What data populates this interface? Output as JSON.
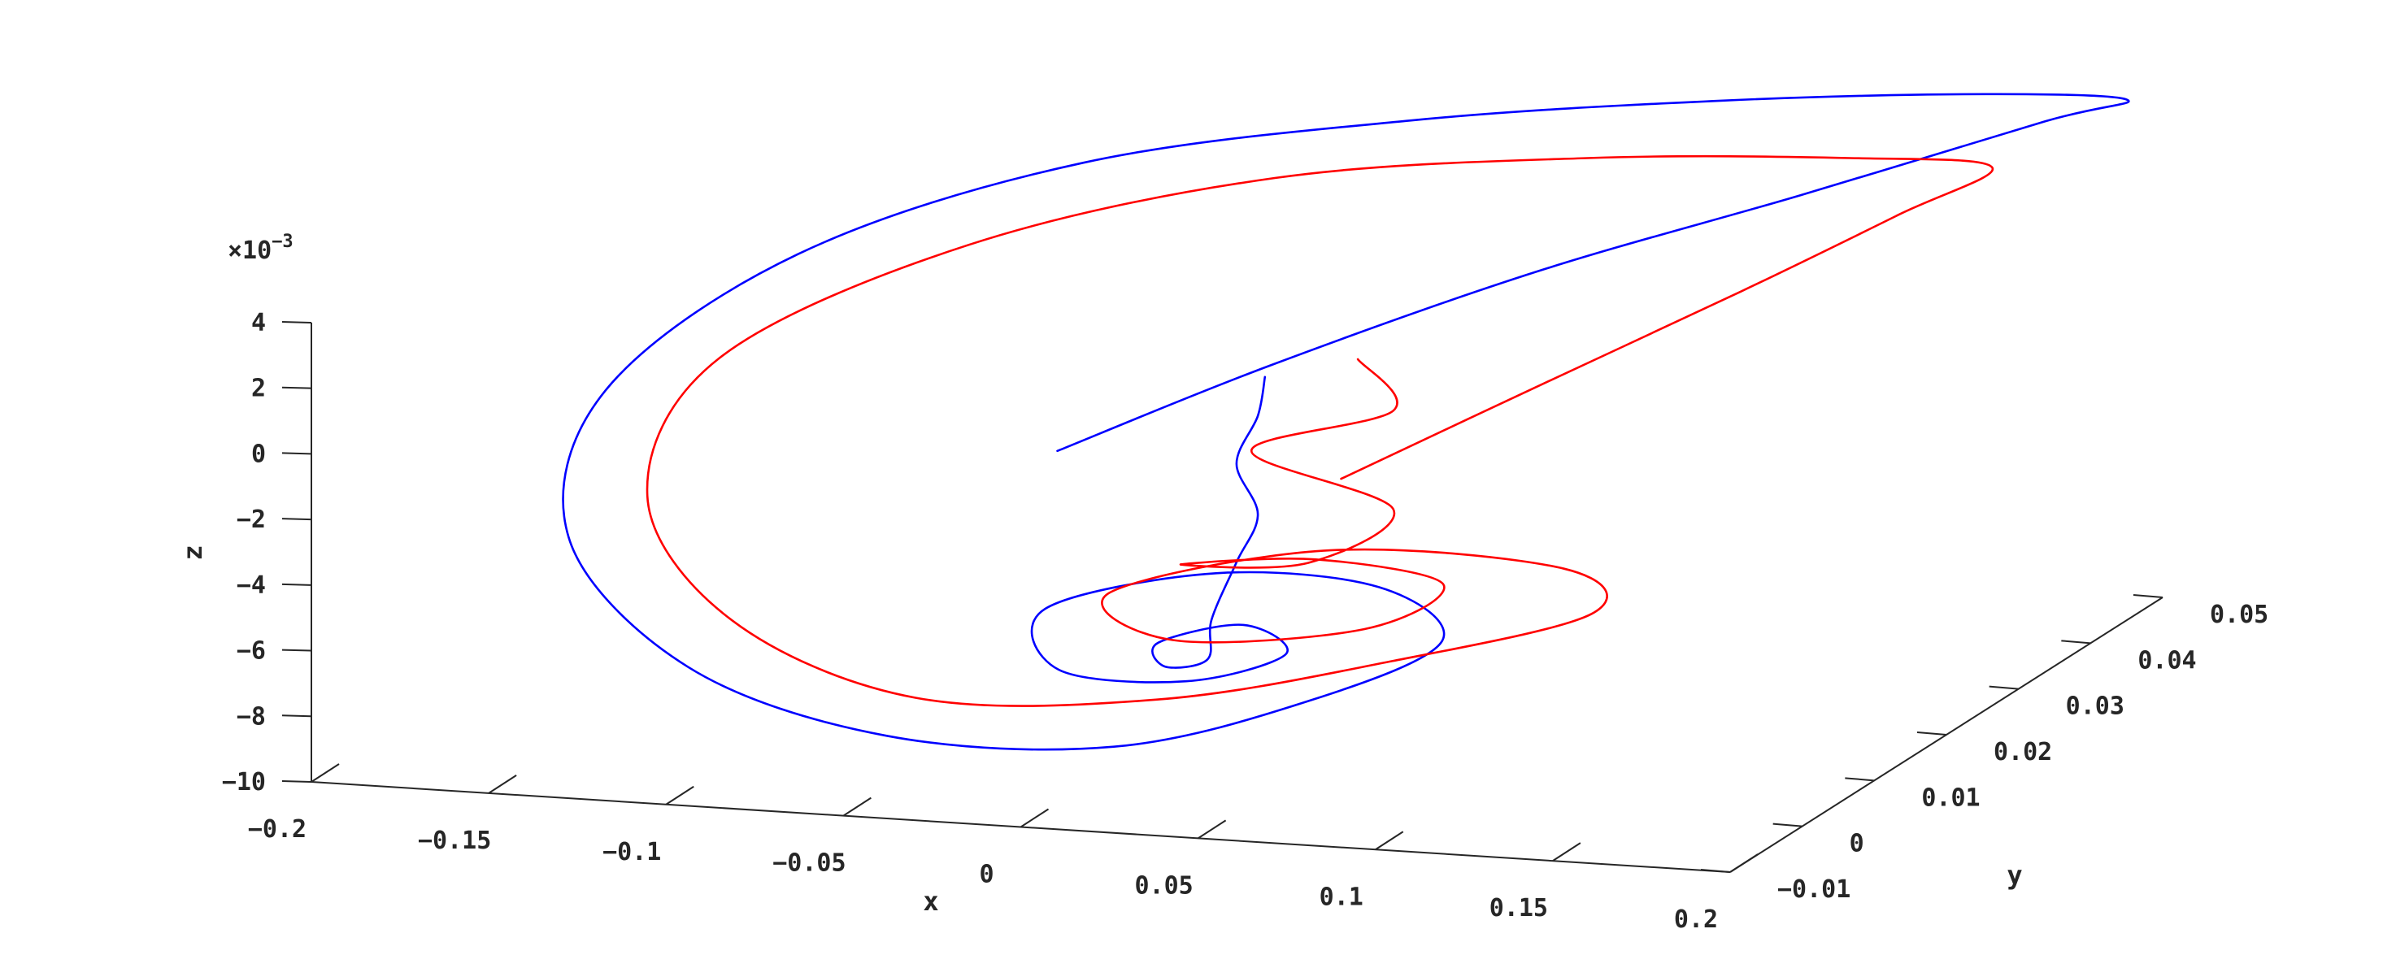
{
  "chart_data": {
    "type": "line",
    "projection": "3d",
    "title": "",
    "xlabel": "x",
    "ylabel": "y",
    "zlabel": "z",
    "z_exponent_label": {
      "prefix": "×10",
      "exponent": "−3"
    },
    "xlim": [
      -0.2,
      0.2
    ],
    "ylim": [
      -0.01,
      0.05
    ],
    "zlim": [
      -10,
      4
    ],
    "x_ticks": [
      {
        "value": -0.2,
        "label": "−0.2"
      },
      {
        "value": -0.15,
        "label": "−0.15"
      },
      {
        "value": -0.1,
        "label": "−0.1"
      },
      {
        "value": -0.05,
        "label": "−0.05"
      },
      {
        "value": 0,
        "label": "0"
      },
      {
        "value": 0.05,
        "label": "0.05"
      },
      {
        "value": 0.1,
        "label": "0.1"
      },
      {
        "value": 0.15,
        "label": "0.15"
      },
      {
        "value": 0.2,
        "label": "0.2"
      }
    ],
    "y_ticks": [
      {
        "value": -0.01,
        "label": "−0.01"
      },
      {
        "value": 0,
        "label": "0"
      },
      {
        "value": 0.01,
        "label": "0.01"
      },
      {
        "value": 0.02,
        "label": "0.02"
      },
      {
        "value": 0.03,
        "label": "0.03"
      },
      {
        "value": 0.04,
        "label": "0.04"
      },
      {
        "value": 0.05,
        "label": "0.05"
      }
    ],
    "z_ticks": [
      {
        "value": 4,
        "label": "4"
      },
      {
        "value": 2,
        "label": "2"
      },
      {
        "value": 0,
        "label": "0"
      },
      {
        "value": -2,
        "label": "−2"
      },
      {
        "value": -4,
        "label": "−4"
      },
      {
        "value": -6,
        "label": "−6"
      },
      {
        "value": -8,
        "label": "−8"
      },
      {
        "value": -10,
        "label": "−10"
      }
    ],
    "grid": false,
    "legend": "none",
    "series": [
      {
        "color": "#0000ff",
        "description": "spiral trajectory starting near origin, sweeping out to large x then back and spiraling down to z≈-8",
        "points": [
          [
            -0.01,
            0.0,
            0.0
          ],
          [
            0.03,
            0.01,
            1.5
          ],
          [
            0.08,
            0.022,
            3.0
          ],
          [
            0.13,
            0.034,
            4.0
          ],
          [
            0.175,
            0.046,
            4.9
          ],
          [
            0.19,
            0.05,
            5.1
          ],
          [
            0.15,
            0.05,
            5.0
          ],
          [
            0.08,
            0.048,
            4.6
          ],
          [
            0.0,
            0.044,
            4.0
          ],
          [
            -0.08,
            0.038,
            3.0
          ],
          [
            -0.14,
            0.028,
            1.2
          ],
          [
            -0.17,
            0.016,
            -1.5
          ],
          [
            -0.16,
            0.006,
            -4.5
          ],
          [
            -0.11,
            -0.002,
            -7.0
          ],
          [
            -0.05,
            -0.004,
            -8.4
          ],
          [
            0.01,
            -0.002,
            -8.6
          ],
          [
            0.05,
            0.006,
            -8.0
          ],
          [
            0.07,
            0.014,
            -7.2
          ],
          [
            0.04,
            0.02,
            -6.6
          ],
          [
            -0.01,
            0.022,
            -6.8
          ],
          [
            -0.05,
            0.018,
            -7.6
          ],
          [
            -0.03,
            0.01,
            -8.2
          ],
          [
            0.01,
            0.008,
            -8.0
          ],
          [
            0.03,
            0.012,
            -7.6
          ],
          [
            0.01,
            0.016,
            -7.4
          ],
          [
            -0.01,
            0.014,
            -7.8
          ],
          [
            0.0,
            0.01,
            -7.9
          ],
          [
            0.012,
            0.01,
            -7.6
          ],
          [
            0.005,
            0.014,
            -7.0
          ],
          [
            0.008,
            0.016,
            -5.5
          ],
          [
            0.014,
            0.016,
            -4.0
          ],
          [
            0.008,
            0.016,
            -2.5
          ],
          [
            0.014,
            0.016,
            -1.0
          ],
          [
            0.016,
            0.016,
            0.2
          ]
        ]
      },
      {
        "color": "#ff0000",
        "description": "companion trajectory, offset from the blue curve, spiraling down then back up",
        "points": [
          [
            0.07,
            0.0,
            -0.3
          ],
          [
            0.1,
            0.012,
            1.0
          ],
          [
            0.13,
            0.026,
            2.2
          ],
          [
            0.15,
            0.038,
            3.0
          ],
          [
            0.16,
            0.046,
            3.4
          ],
          [
            0.12,
            0.046,
            3.4
          ],
          [
            0.05,
            0.044,
            3.2
          ],
          [
            -0.03,
            0.04,
            2.6
          ],
          [
            -0.1,
            0.032,
            1.2
          ],
          [
            -0.15,
            0.022,
            -1.2
          ],
          [
            -0.15,
            0.012,
            -4.0
          ],
          [
            -0.11,
            0.004,
            -6.4
          ],
          [
            -0.05,
            0.0,
            -7.8
          ],
          [
            0.01,
            0.004,
            -8.0
          ],
          [
            0.06,
            0.012,
            -7.6
          ],
          [
            0.1,
            0.02,
            -7.0
          ],
          [
            0.08,
            0.026,
            -6.6
          ],
          [
            0.01,
            0.028,
            -6.8
          ],
          [
            -0.04,
            0.022,
            -7.6
          ],
          [
            -0.01,
            0.016,
            -8.0
          ],
          [
            0.04,
            0.018,
            -7.6
          ],
          [
            0.05,
            0.024,
            -7.0
          ],
          [
            0.01,
            0.026,
            -6.8
          ],
          [
            -0.02,
            0.022,
            -6.6
          ],
          [
            0.02,
            0.02,
            -6.0
          ],
          [
            0.04,
            0.022,
            -4.5
          ],
          [
            0.0,
            0.022,
            -3.0
          ],
          [
            0.04,
            0.022,
            -1.5
          ],
          [
            0.03,
            0.022,
            0.0
          ]
        ]
      }
    ]
  }
}
